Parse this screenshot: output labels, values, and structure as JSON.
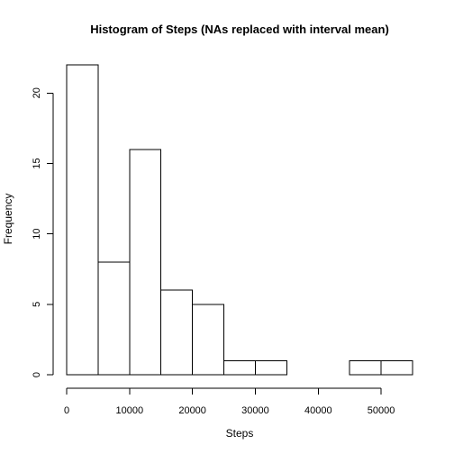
{
  "chart_data": {
    "type": "bar",
    "title": "Histogram of Steps (NAs replaced with interval mean)",
    "xlabel": "Steps",
    "ylabel": "Frequency",
    "bin_edges": [
      0,
      5000,
      10000,
      15000,
      20000,
      25000,
      30000,
      35000,
      40000,
      45000,
      50000,
      55000
    ],
    "values": [
      22,
      8,
      16,
      6,
      5,
      1,
      1,
      0,
      0,
      1,
      1
    ],
    "xlim": [
      0,
      55000
    ],
    "ylim": [
      0,
      22
    ],
    "x_ticks": [
      0,
      10000,
      20000,
      30000,
      40000,
      50000
    ],
    "x_tick_labels": [
      "0",
      "10000",
      "20000",
      "30000",
      "40000",
      "50000"
    ],
    "y_ticks": [
      0,
      5,
      10,
      15,
      20
    ],
    "y_tick_labels": [
      "0",
      "5",
      "10",
      "15",
      "20"
    ],
    "grid": false,
    "bar_fill": "#ffffff",
    "bar_stroke": "#000000"
  }
}
